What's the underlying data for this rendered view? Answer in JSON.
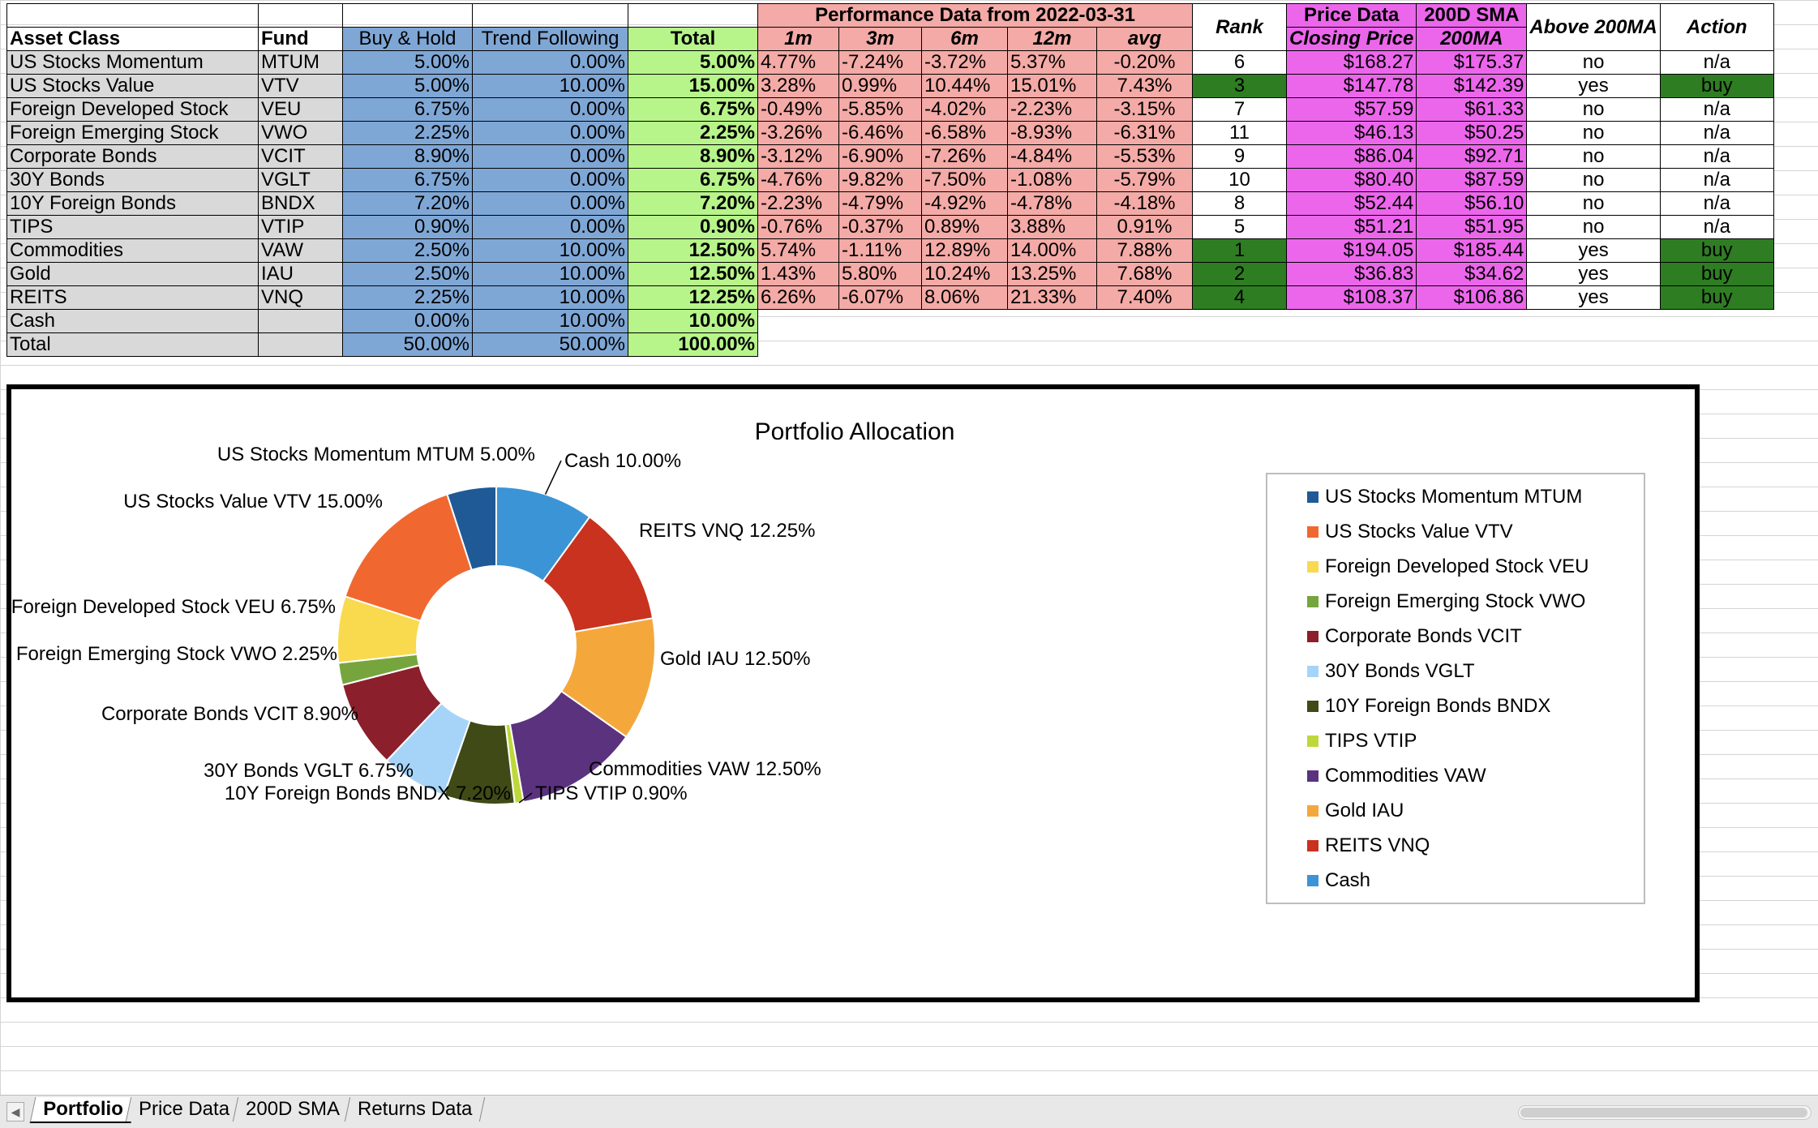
{
  "headers": {
    "asset_class": "Asset Class",
    "fund": "Fund",
    "buy_hold": "Buy & Hold",
    "trend_following": "Trend Following",
    "total": "Total",
    "perf_title": "Performance Data from 2022-03-31",
    "p1m": "1m",
    "p3m": "3m",
    "p6m": "6m",
    "p12m": "12m",
    "avg": "avg",
    "rank": "Rank",
    "price_title": "Price Data",
    "closing_price": "Closing Price",
    "sma_title": "200D SMA",
    "sma_sub": "200MA",
    "above": "Above 200MA",
    "action": "Action"
  },
  "rows": [
    {
      "asset": "US Stocks Momentum",
      "fund": "MTUM",
      "bh": "5.00%",
      "tf": "0.00%",
      "total": "5.00%",
      "m1": "4.77%",
      "m3": "-7.24%",
      "m6": "-3.72%",
      "m12": "5.37%",
      "avg": "-0.20%",
      "rank": "6",
      "price": "$168.27",
      "sma": "$175.37",
      "above": "no",
      "action": "n/a"
    },
    {
      "asset": "US Stocks Value",
      "fund": "VTV",
      "bh": "5.00%",
      "tf": "10.00%",
      "total": "15.00%",
      "m1": "3.28%",
      "m3": "0.99%",
      "m6": "10.44%",
      "m12": "15.01%",
      "avg": "7.43%",
      "rank": "3",
      "price": "$147.78",
      "sma": "$142.39",
      "above": "yes",
      "action": "buy"
    },
    {
      "asset": "Foreign Developed Stock",
      "fund": "VEU",
      "bh": "6.75%",
      "tf": "0.00%",
      "total": "6.75%",
      "m1": "-0.49%",
      "m3": "-5.85%",
      "m6": "-4.02%",
      "m12": "-2.23%",
      "avg": "-3.15%",
      "rank": "7",
      "price": "$57.59",
      "sma": "$61.33",
      "above": "no",
      "action": "n/a"
    },
    {
      "asset": "Foreign Emerging Stock",
      "fund": "VWO",
      "bh": "2.25%",
      "tf": "0.00%",
      "total": "2.25%",
      "m1": "-3.26%",
      "m3": "-6.46%",
      "m6": "-6.58%",
      "m12": "-8.93%",
      "avg": "-6.31%",
      "rank": "11",
      "price": "$46.13",
      "sma": "$50.25",
      "above": "no",
      "action": "n/a"
    },
    {
      "asset": "Corporate Bonds",
      "fund": "VCIT",
      "bh": "8.90%",
      "tf": "0.00%",
      "total": "8.90%",
      "m1": "-3.12%",
      "m3": "-6.90%",
      "m6": "-7.26%",
      "m12": "-4.84%",
      "avg": "-5.53%",
      "rank": "9",
      "price": "$86.04",
      "sma": "$92.71",
      "above": "no",
      "action": "n/a"
    },
    {
      "asset": "30Y Bonds",
      "fund": "VGLT",
      "bh": "6.75%",
      "tf": "0.00%",
      "total": "6.75%",
      "m1": "-4.76%",
      "m3": "-9.82%",
      "m6": "-7.50%",
      "m12": "-1.08%",
      "avg": "-5.79%",
      "rank": "10",
      "price": "$80.40",
      "sma": "$87.59",
      "above": "no",
      "action": "n/a"
    },
    {
      "asset": "10Y Foreign Bonds",
      "fund": "BNDX",
      "bh": "7.20%",
      "tf": "0.00%",
      "total": "7.20%",
      "m1": "-2.23%",
      "m3": "-4.79%",
      "m6": "-4.92%",
      "m12": "-4.78%",
      "avg": "-4.18%",
      "rank": "8",
      "price": "$52.44",
      "sma": "$56.10",
      "above": "no",
      "action": "n/a"
    },
    {
      "asset": "TIPS",
      "fund": "VTIP",
      "bh": "0.90%",
      "tf": "0.00%",
      "total": "0.90%",
      "m1": "-0.76%",
      "m3": "-0.37%",
      "m6": "0.89%",
      "m12": "3.88%",
      "avg": "0.91%",
      "rank": "5",
      "price": "$51.21",
      "sma": "$51.95",
      "above": "no",
      "action": "n/a"
    },
    {
      "asset": "Commodities",
      "fund": "VAW",
      "bh": "2.50%",
      "tf": "10.00%",
      "total": "12.50%",
      "m1": "5.74%",
      "m3": "-1.11%",
      "m6": "12.89%",
      "m12": "14.00%",
      "avg": "7.88%",
      "rank": "1",
      "price": "$194.05",
      "sma": "$185.44",
      "above": "yes",
      "action": "buy"
    },
    {
      "asset": "Gold",
      "fund": "IAU",
      "bh": "2.50%",
      "tf": "10.00%",
      "total": "12.50%",
      "m1": "1.43%",
      "m3": "5.80%",
      "m6": "10.24%",
      "m12": "13.25%",
      "avg": "7.68%",
      "rank": "2",
      "price": "$36.83",
      "sma": "$34.62",
      "above": "yes",
      "action": "buy"
    },
    {
      "asset": "REITS",
      "fund": "VNQ",
      "bh": "2.25%",
      "tf": "10.00%",
      "total": "12.25%",
      "m1": "6.26%",
      "m3": "-6.07%",
      "m6": "8.06%",
      "m12": "21.33%",
      "avg": "7.40%",
      "rank": "4",
      "price": "$108.37",
      "sma": "$106.86",
      "above": "yes",
      "action": "buy"
    }
  ],
  "cash_row": {
    "asset": "Cash",
    "bh": "0.00%",
    "tf": "10.00%",
    "total": "10.00%"
  },
  "total_row": {
    "asset": "Total",
    "bh": "50.00%",
    "tf": "50.00%",
    "total": "100.00%"
  },
  "chart_data": {
    "type": "pie",
    "title": "Portfolio  Allocation",
    "legend_position": "right",
    "categories": [
      "US Stocks Momentum MTUM",
      "US Stocks Value VTV",
      "Foreign Developed Stock VEU",
      "Foreign Emerging Stock VWO",
      "Corporate Bonds VCIT",
      "30Y Bonds VGLT",
      "10Y Foreign Bonds BNDX",
      "TIPS VTIP",
      "Commodities VAW",
      "Gold IAU",
      "REITS VNQ",
      "Cash"
    ],
    "values": [
      5.0,
      15.0,
      6.75,
      2.25,
      8.9,
      6.75,
      7.2,
      0.9,
      12.5,
      12.5,
      12.25,
      10.0
    ],
    "data_labels": [
      "US Stocks Momentum MTUM 5.00%",
      "US Stocks Value VTV 15.00%",
      "Foreign Developed Stock VEU 6.75%",
      "Foreign Emerging Stock VWO 2.25%",
      "Corporate Bonds VCIT 8.90%",
      "30Y Bonds VGLT 6.75%",
      "10Y Foreign Bonds BNDX 7.20%",
      "TIPS VTIP 0.90%",
      "Commodities VAW 12.50%",
      "Gold IAU 12.50%",
      "REITS VNQ 12.25%",
      "Cash 10.00%"
    ],
    "legend": [
      "US Stocks Momentum MTUM",
      "US Stocks Value VTV",
      "Foreign Developed Stock VEU",
      "Foreign Emerging Stock VWO",
      "Corporate Bonds VCIT",
      "30Y Bonds VGLT",
      "10Y Foreign Bonds BNDX",
      "TIPS VTIP",
      "Commodities VAW",
      "Gold IAU",
      "REITS VNQ",
      "Cash"
    ],
    "colors": [
      "#1f5a96",
      "#f06830",
      "#f9d94e",
      "#76a53e",
      "#8b1f2b",
      "#a6d4f8",
      "#3f4a16",
      "#bed83c",
      "#5a327e",
      "#f4a83c",
      "#c8321e",
      "#3b94d6"
    ]
  },
  "sheet_tabs": [
    "Portfolio",
    "Price Data",
    "200D SMA",
    "Returns Data"
  ],
  "active_tab": "Portfolio"
}
